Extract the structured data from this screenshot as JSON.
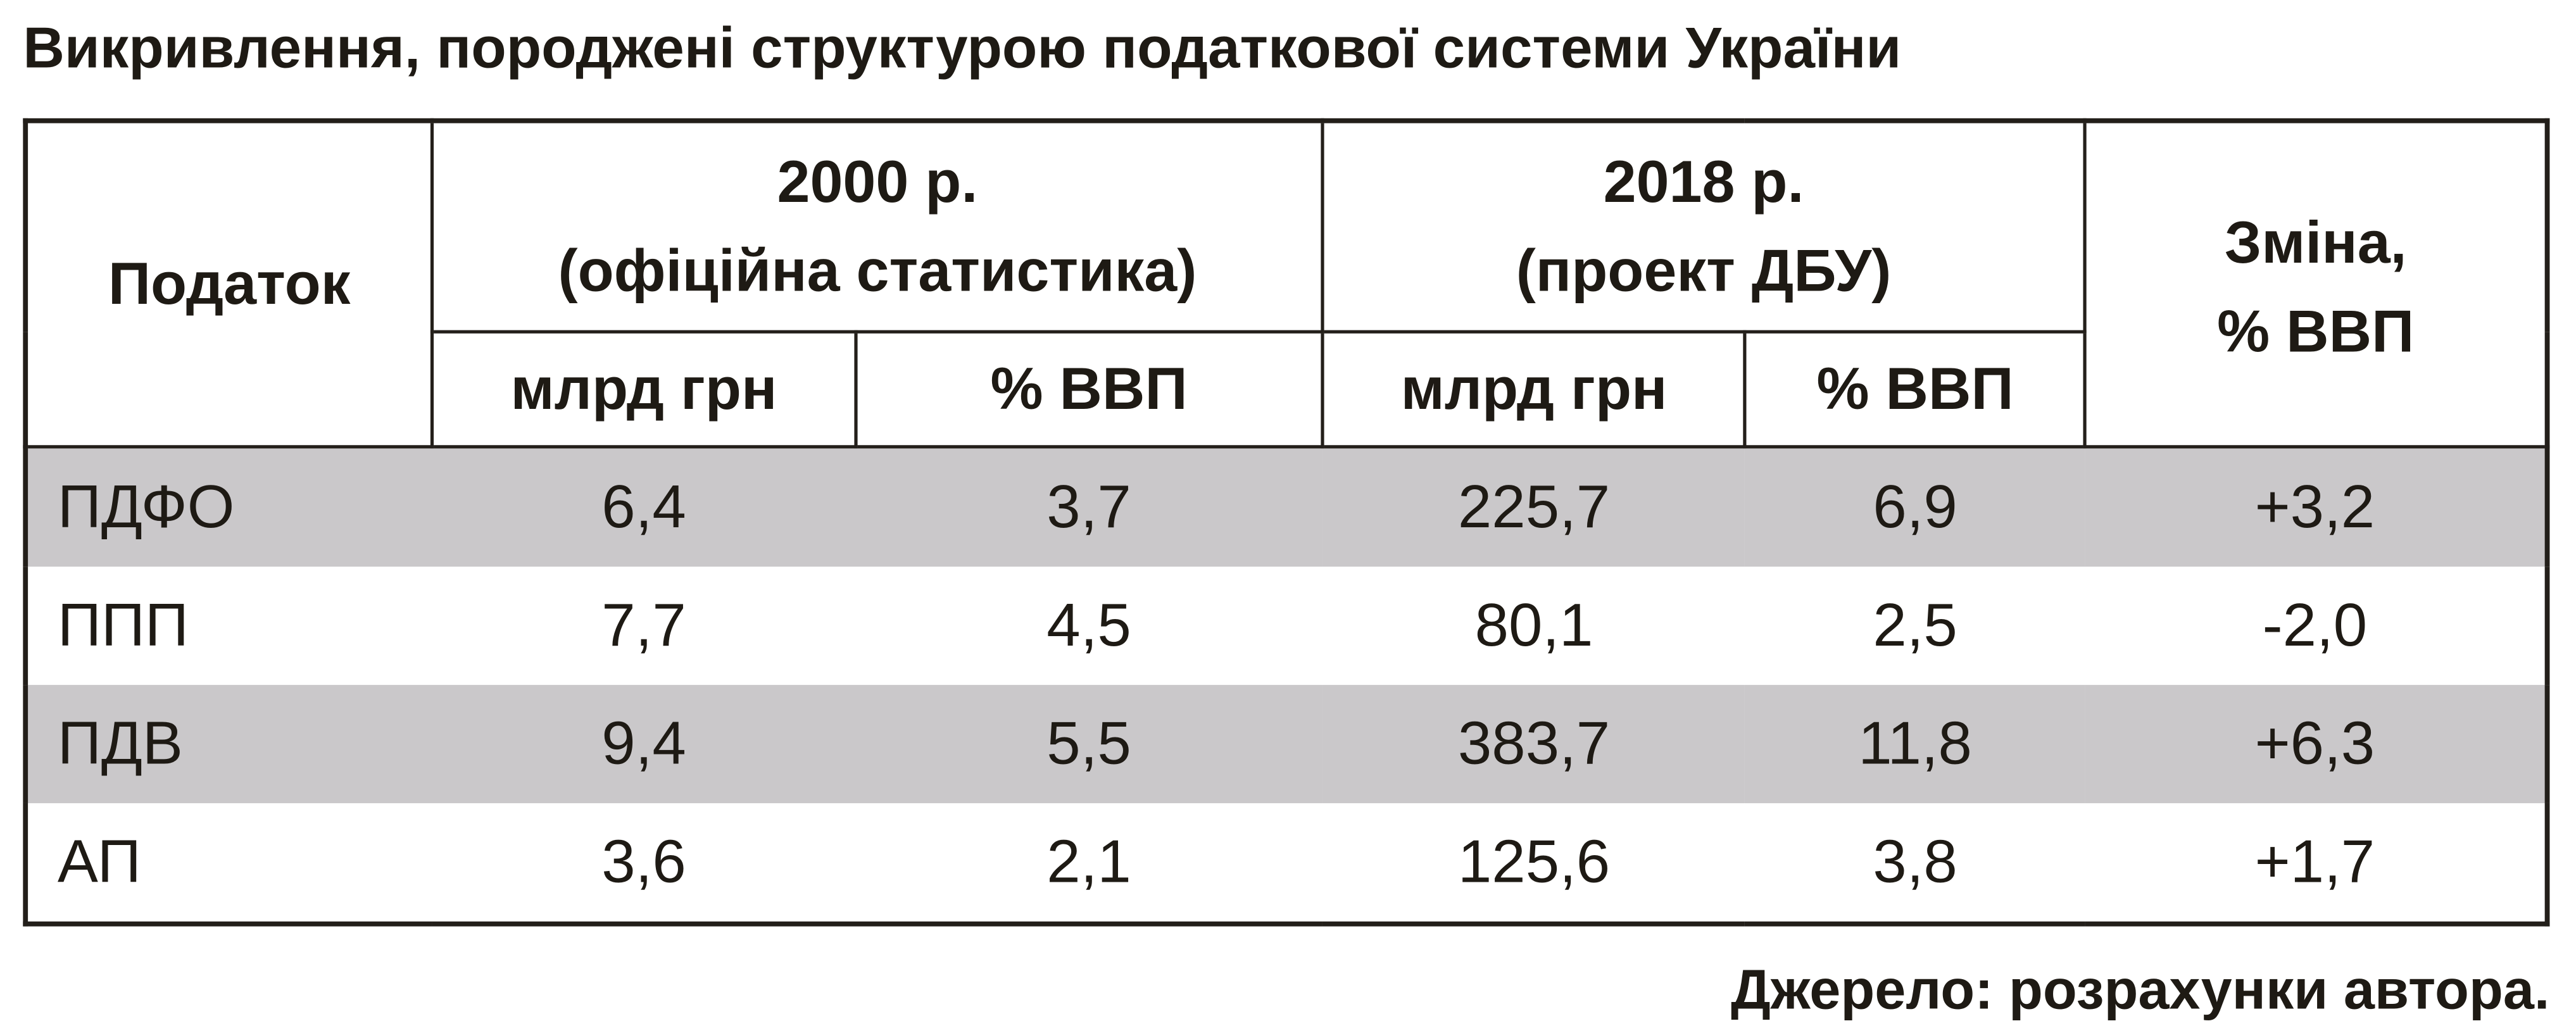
{
  "title": "Викривлення, породжені структурою податкової системи України",
  "table": {
    "header": {
      "tax": "Податок",
      "groups": [
        {
          "lines": [
            "2000 р.",
            "(офіційна статистика)"
          ],
          "columns": [
            "млрд грн",
            "% ВВП"
          ]
        },
        {
          "lines": [
            "2018 р.",
            "(проект ДБУ)"
          ],
          "columns": [
            "млрд грн",
            "% ВВП"
          ]
        }
      ],
      "change": [
        "Зміна,",
        "% ВВП"
      ]
    },
    "rows": [
      [
        "ПДФО",
        "6,4",
        "3,7",
        "225,7",
        "6,9",
        "+3,2"
      ],
      [
        "ППП",
        "7,7",
        "4,5",
        "80,1",
        "2,5",
        "-2,0"
      ],
      [
        "ПДВ",
        "9,4",
        "5,5",
        "383,7",
        "11,8",
        "+6,3"
      ],
      [
        "АП",
        "3,6",
        "2,1",
        "125,6",
        "3,8",
        "+1,7"
      ]
    ]
  },
  "source": "Джерело: розрахунки автора."
}
